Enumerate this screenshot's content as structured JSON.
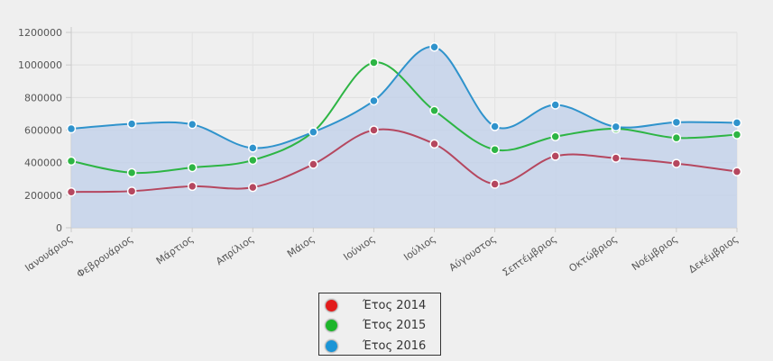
{
  "chart_data": {
    "type": "area",
    "categories": [
      "Ιανουάριος",
      "Φεβρουάριος",
      "Μάρτιος",
      "Απρίλιος",
      "Μάιος",
      "Ιούνιος",
      "Ιούλιος",
      "Αύγουστος",
      "Σεπτέμβριος",
      "Οκτώβριος",
      "Νοέμβριος",
      "Δεκέμβριος"
    ],
    "series": [
      {
        "name": "Έτος 2014",
        "color": "#b5475f",
        "legend_color": "#e21c1c",
        "values": [
          220000,
          225000,
          255000,
          248000,
          390000,
          600000,
          515000,
          268000,
          440000,
          428000,
          395000,
          345000
        ]
      },
      {
        "name": "Έτος 2015",
        "color": "#2db544",
        "legend_color": "#1cb52a",
        "values": [
          410000,
          338000,
          370000,
          415000,
          590000,
          1015000,
          720000,
          480000,
          560000,
          608000,
          552000,
          572000
        ]
      },
      {
        "name": "Έτος 2016",
        "color": "#2f93cc",
        "legend_color": "#1a94d6",
        "fill": "#c4d2ea",
        "values": [
          608000,
          638000,
          635000,
          490000,
          588000,
          780000,
          1110000,
          622000,
          755000,
          620000,
          648000,
          645000
        ]
      }
    ],
    "y_ticks": [
      "0",
      "200000",
      "400000",
      "600000",
      "800000",
      "1000000",
      "1200000"
    ],
    "ylim": [
      0,
      1200000
    ],
    "grid": true,
    "legend_position": "bottom-center"
  }
}
